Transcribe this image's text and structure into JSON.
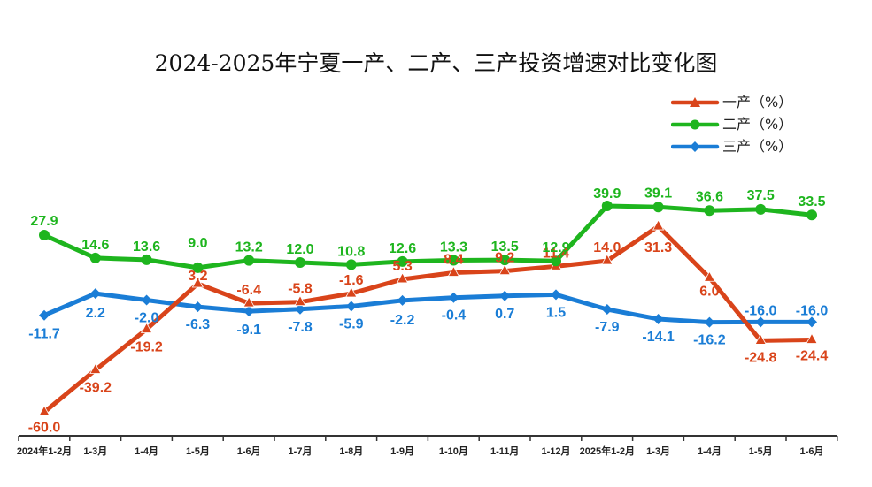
{
  "chart_data": {
    "type": "line",
    "title": "2024-2025年宁夏一产、二产、三产投资增速对比变化图",
    "categories": [
      "2024年1-2月",
      "1-3月",
      "1-4月",
      "1-5月",
      "1-6月",
      "1-7月",
      "1-8月",
      "1-9月",
      "1-10月",
      "1-11月",
      "1-12月",
      "2025年1-2月",
      "1-3月",
      "1-4月",
      "1-5月",
      "1-6月"
    ],
    "series": [
      {
        "name": "一产（%）",
        "color": "#D9441A",
        "marker": "triangle",
        "values": [
          -60.0,
          -39.2,
          -19.2,
          3.2,
          -6.4,
          -5.8,
          -1.6,
          5.3,
          8.4,
          9.2,
          11.4,
          14.0,
          31.3,
          6.0,
          -24.8,
          -24.4
        ],
        "labels": [
          "-60.0",
          "-39.2",
          "-19.2",
          "3.2",
          "-6.4",
          "-5.8",
          "-1.6",
          "5.3",
          "8.4",
          "9.2",
          "11.4",
          "14.0",
          "31.3",
          "6.0",
          "-24.8",
          "-24.4"
        ]
      },
      {
        "name": "二产（%）",
        "color": "#1EB51E",
        "marker": "circle",
        "values": [
          27.9,
          14.6,
          13.6,
          9.0,
          13.2,
          12.0,
          10.8,
          12.6,
          13.3,
          13.5,
          12.9,
          39.9,
          39.1,
          36.6,
          37.5,
          33.5
        ],
        "labels": [
          "27.9",
          "14.6",
          "13.6",
          "9.0",
          "13.2",
          "12.0",
          "10.8",
          "12.6",
          "13.3",
          "13.5",
          "12.9",
          "39.9",
          "39.1",
          "36.6",
          "37.5",
          "33.5"
        ]
      },
      {
        "name": "三产（%）",
        "color": "#1A7DD6",
        "marker": "diamond",
        "values": [
          -11.7,
          2.2,
          -2.0,
          -6.3,
          -9.1,
          -7.8,
          -5.9,
          -2.2,
          -0.4,
          0.7,
          1.5,
          -7.9,
          -14.1,
          -16.2,
          -16.0,
          -16.0
        ],
        "labels": [
          "-11.7",
          "2.2",
          "-2.0",
          "-6.3",
          "-9.1",
          "-7.8",
          "-5.9",
          "-2.2",
          "-0.4",
          "0.7",
          "1.5",
          "-7.9",
          "-14.1",
          "-16.2",
          "-16.0",
          "-16.0"
        ]
      }
    ],
    "legend_position": "top-right",
    "grid": false
  }
}
